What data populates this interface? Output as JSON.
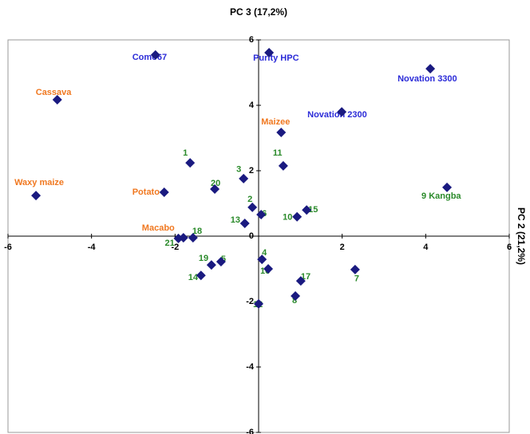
{
  "chart_data": {
    "type": "scatter",
    "title": "PC 3 (17,2%)",
    "y_label": "PC 2 (21,2%)",
    "xlim": [
      -6,
      6
    ],
    "ylim": [
      -6,
      6
    ],
    "xticks": [
      -6,
      -4,
      -2,
      2,
      4,
      6
    ],
    "yticks": [
      -6,
      -4,
      -2,
      0,
      2,
      4,
      6
    ],
    "grid": false,
    "marker_color": "#1a1a80",
    "series": [
      {
        "label_color": "#2b2bd8",
        "labels": [
          "Como67",
          "Purity HPC",
          "Novation 3300",
          "Novation 2300"
        ],
        "x": [
          -2.47,
          0.25,
          4.11,
          1.99
        ],
        "y": [
          5.54,
          5.61,
          5.12,
          3.8
        ]
      },
      {
        "label_color": "#f07820",
        "labels": [
          "Cassava",
          "Maizee",
          "Waxy maize",
          "Potato",
          "Macabo"
        ],
        "x": [
          -4.82,
          0.54,
          -5.33,
          -2.26,
          -1.8
        ],
        "y": [
          4.17,
          3.17,
          1.24,
          1.34,
          -0.05
        ]
      },
      {
        "label_color": "#2a8a2a",
        "labels": [
          "9 Kangba",
          "1",
          "11",
          "3",
          "20",
          "2",
          "6",
          "15",
          "10",
          "18",
          "21",
          "13",
          "4",
          "16",
          "19",
          "5",
          "14",
          "17",
          "7",
          "8",
          "12"
        ],
        "x": [
          4.51,
          -1.64,
          0.59,
          -0.36,
          -1.05,
          -0.15,
          0.06,
          1.15,
          0.92,
          -1.57,
          -1.92,
          -0.33,
          0.08,
          0.23,
          -1.13,
          -0.9,
          -1.38,
          1.01,
          2.31,
          0.88,
          0.0
        ],
        "y": [
          1.49,
          2.24,
          2.15,
          1.76,
          1.44,
          0.88,
          0.66,
          0.8,
          0.59,
          -0.05,
          -0.07,
          0.39,
          -0.71,
          -1.0,
          -0.88,
          -0.78,
          -1.2,
          -1.37,
          -1.02,
          -1.83,
          -2.07
        ]
      }
    ]
  }
}
